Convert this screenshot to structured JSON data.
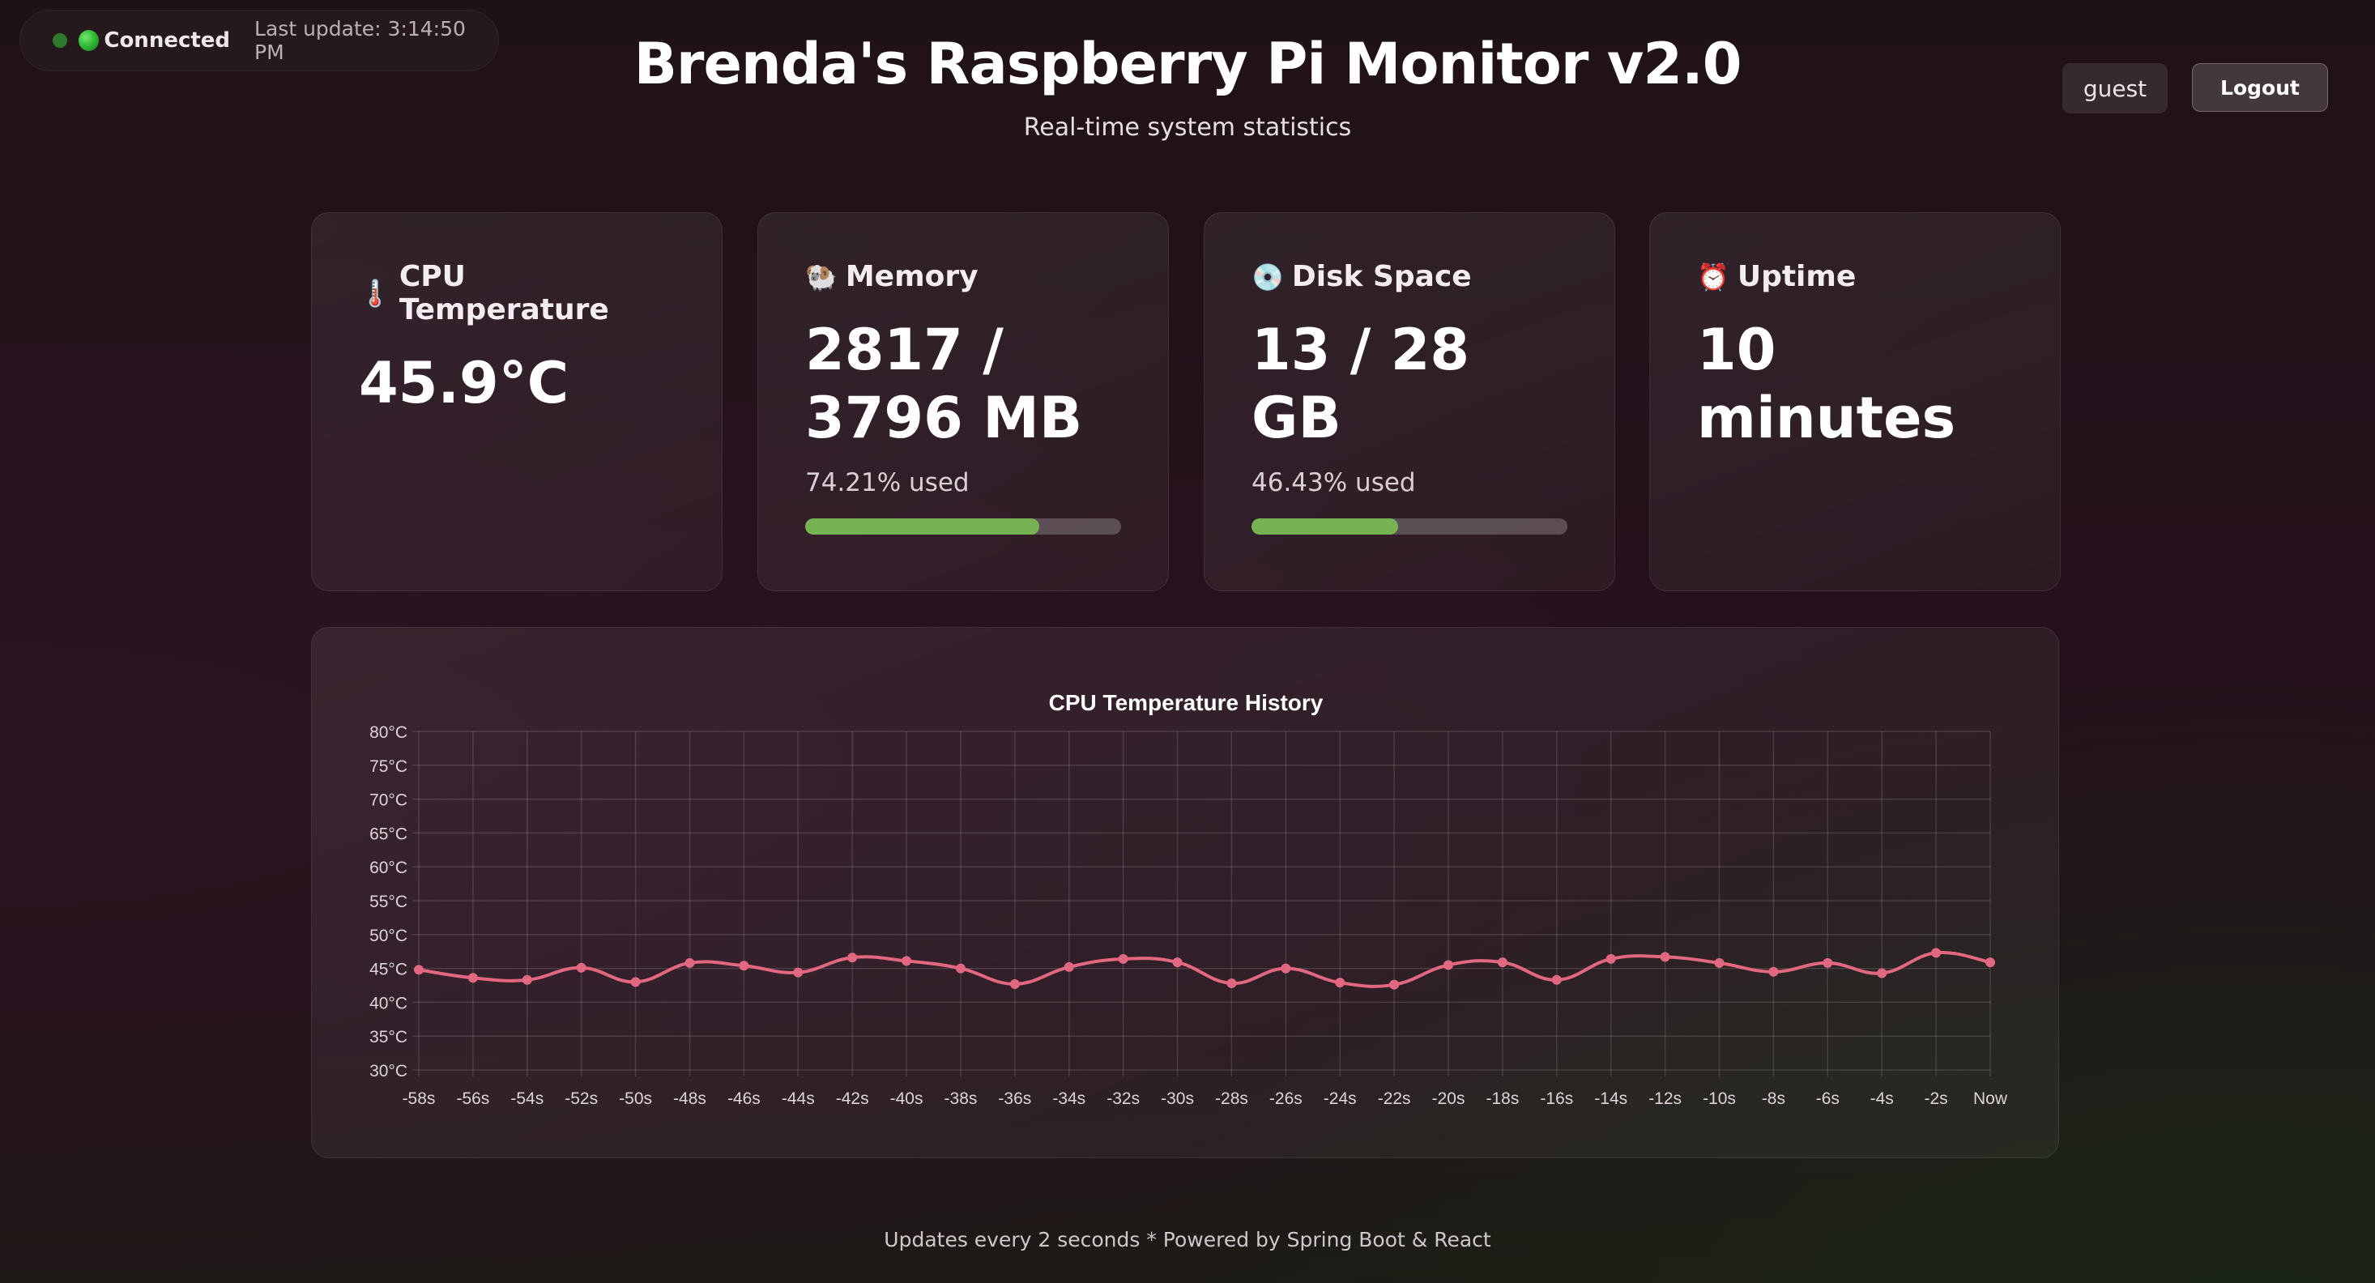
{
  "status": {
    "connected_label": "Connected",
    "last_update": "Last update: 3:14:50 PM"
  },
  "header": {
    "title": "Brenda's Raspberry Pi Monitor v2.0",
    "subtitle": "Real-time system statistics"
  },
  "user": {
    "name": "guest",
    "logout_label": "Logout"
  },
  "cards": {
    "cpu": {
      "icon": "thermometer-icon",
      "glyph": "🌡️",
      "title": "CPU Temperature",
      "value": "45.9°C"
    },
    "memory": {
      "icon": "ram-icon",
      "glyph": "🐏",
      "title": "Memory",
      "value_line1": "2817 /",
      "value_line2": "3796 MB",
      "sub": "74.21% used",
      "used_fraction": 0.7421
    },
    "disk": {
      "icon": "disc-icon",
      "glyph": "💿",
      "title": "Disk Space",
      "value": "13 / 28 GB",
      "sub": "46.43% used",
      "used_fraction": 0.4643
    },
    "uptime": {
      "icon": "alarm-clock-icon",
      "glyph": "⏰",
      "title": "Uptime",
      "value": "10 minutes"
    }
  },
  "colors": {
    "line": "#e2687f",
    "bar_fill": "#76b352",
    "status_green": "#29b12d"
  },
  "chart_data": {
    "type": "line",
    "title": "CPU Temperature History",
    "x": [
      "-58s",
      "-56s",
      "-54s",
      "-52s",
      "-50s",
      "-48s",
      "-46s",
      "-44s",
      "-42s",
      "-40s",
      "-38s",
      "-36s",
      "-34s",
      "-32s",
      "-30s",
      "-28s",
      "-26s",
      "-24s",
      "-22s",
      "-20s",
      "-18s",
      "-16s",
      "-14s",
      "-12s",
      "-10s",
      "-8s",
      "-6s",
      "-4s",
      "-2s",
      "Now"
    ],
    "series": [
      {
        "values": [
          44.8,
          43.6,
          43.3,
          45.1,
          43.0,
          45.8,
          45.4,
          44.4,
          46.6,
          46.1,
          45.0,
          42.7,
          45.2,
          46.4,
          45.9,
          42.8,
          45.0,
          42.9,
          42.6,
          45.5,
          45.9,
          43.3,
          46.4,
          46.7,
          45.8,
          44.5,
          45.8,
          44.3,
          47.3,
          45.9
        ]
      }
    ],
    "y_ticks": [
      "80°C",
      "75°C",
      "70°C",
      "65°C",
      "60°C",
      "55°C",
      "50°C",
      "45°C",
      "40°C",
      "35°C",
      "30°C"
    ],
    "ylim": [
      30,
      80
    ],
    "grid": true
  },
  "footer": "Updates every 2 seconds * Powered by Spring Boot & React"
}
